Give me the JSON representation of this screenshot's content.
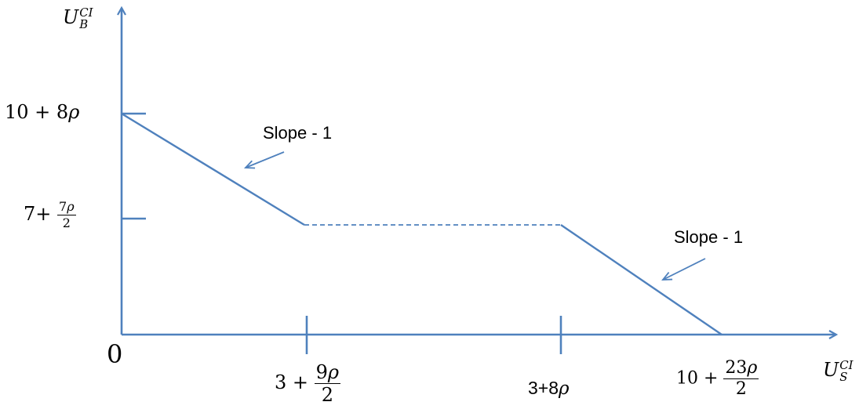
{
  "colors": {
    "axis": "#4F81BD",
    "curve": "#4F81BD",
    "text": "#000000"
  },
  "axes": {
    "origin_label": "0",
    "y_axis": {
      "base": "U",
      "sub": "B",
      "sup": "CI"
    },
    "x_axis": {
      "base": "U",
      "sub": "S",
      "sup": "CI"
    }
  },
  "y_ticks": [
    {
      "prefix": "10 + 8",
      "symbol": "ρ"
    },
    {
      "prefix": "7+ ",
      "num_digit": "7",
      "num_symbol": "ρ",
      "den": "2"
    }
  ],
  "x_ticks": [
    {
      "prefix": "3 + ",
      "num_digit": "9",
      "num_symbol": "ρ",
      "den": "2"
    },
    {
      "prefix": "3+8",
      "symbol": "ρ"
    },
    {
      "prefix": "10 + ",
      "num_digit": "23",
      "num_symbol": "ρ",
      "den": "2"
    }
  ],
  "annotations": [
    {
      "text": "Slope - 1"
    },
    {
      "text": "Slope - 1"
    }
  ],
  "segments": [
    {
      "from": "10 + 8ρ",
      "to": "3 + 9ρ/2",
      "style": "solid"
    },
    {
      "from": "3 + 9ρ/2",
      "to": "3+8ρ",
      "style": "dashed"
    },
    {
      "from": "3+8ρ",
      "to": "10 + 23ρ/2",
      "style": "solid"
    }
  ]
}
